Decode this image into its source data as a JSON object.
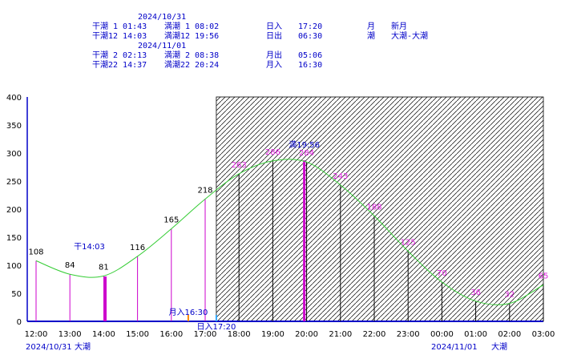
{
  "header": {
    "date1": "2024/10/31",
    "date2": "2024/11/01",
    "r1_low": "干潮 1 01:43",
    "r1_high": "満潮 1 08:02",
    "r1_sun_label": "日入",
    "r1_sun_value": "17:20",
    "r1_moon_label": "月",
    "r1_moon_value": "新月",
    "r2_low": "干潮12 14:03",
    "r2_high": "満潮12 19:56",
    "r2_sun_label": "日出",
    "r2_sun_value": "06:30",
    "r2_tide_label": "潮",
    "r2_tide_value": "大潮-大潮",
    "r3_low": "干潮 2 02:13",
    "r3_high": "満潮 2 08:38",
    "r3_moon_label": "月出",
    "r3_moon_value": "05:06",
    "r4_low": "干潮22 14:37",
    "r4_high": "満潮22 20:24",
    "r4_moon_label": "月入",
    "r4_moon_value": "16:30"
  },
  "footer": {
    "left_date": "2024/10/31",
    "left_tide": "大潮",
    "right_date": "2024/11/01",
    "right_tide": "大潮"
  },
  "colors": {
    "axis": "#0000c8",
    "curve": "#33cc33",
    "day_bar": "#cc00cc",
    "night_bar": "#000000",
    "day_label": "#000000",
    "night_label": "#e020e0",
    "annotation": "#0000c8",
    "moonset_marker": "#ff8800",
    "sunset_marker": "#33aaff",
    "hatch": "#000000"
  },
  "chart_data": {
    "type": "line",
    "title": "",
    "xlabel": "",
    "ylabel": "",
    "ylim": [
      0,
      400
    ],
    "yticks": [
      "0",
      "50",
      "100",
      "150",
      "200",
      "250",
      "300",
      "350",
      "400"
    ],
    "xticks": [
      "12:00",
      "13:00",
      "14:00",
      "15:00",
      "16:00",
      "17:00",
      "18:00",
      "19:00",
      "20:00",
      "21:00",
      "22:00",
      "23:00",
      "00:00",
      "01:00",
      "02:00",
      "03:00"
    ],
    "series": [
      {
        "values": [
          108,
          84,
          81,
          116,
          165,
          218,
          263,
          286,
          284,
          243,
          188,
          125,
          70,
          36,
          32,
          65
        ]
      }
    ],
    "bar_labels": [
      "108",
      "84",
      "81",
      "116",
      "165",
      "218",
      "263",
      "286",
      "284",
      "243",
      "188",
      "125",
      "70",
      "36",
      "32",
      "65"
    ],
    "night_from_hour": 17.33,
    "extremes": [
      {
        "label": "干14:03",
        "hour": 14.05,
        "value": 80
      },
      {
        "label": "満19:56",
        "hour": 19.93,
        "value": 287
      }
    ],
    "events": [
      {
        "label": "月入16:30",
        "hour": 16.5
      },
      {
        "label": "日入17:20",
        "hour": 17.33
      }
    ],
    "grid": false,
    "legend": "none"
  }
}
